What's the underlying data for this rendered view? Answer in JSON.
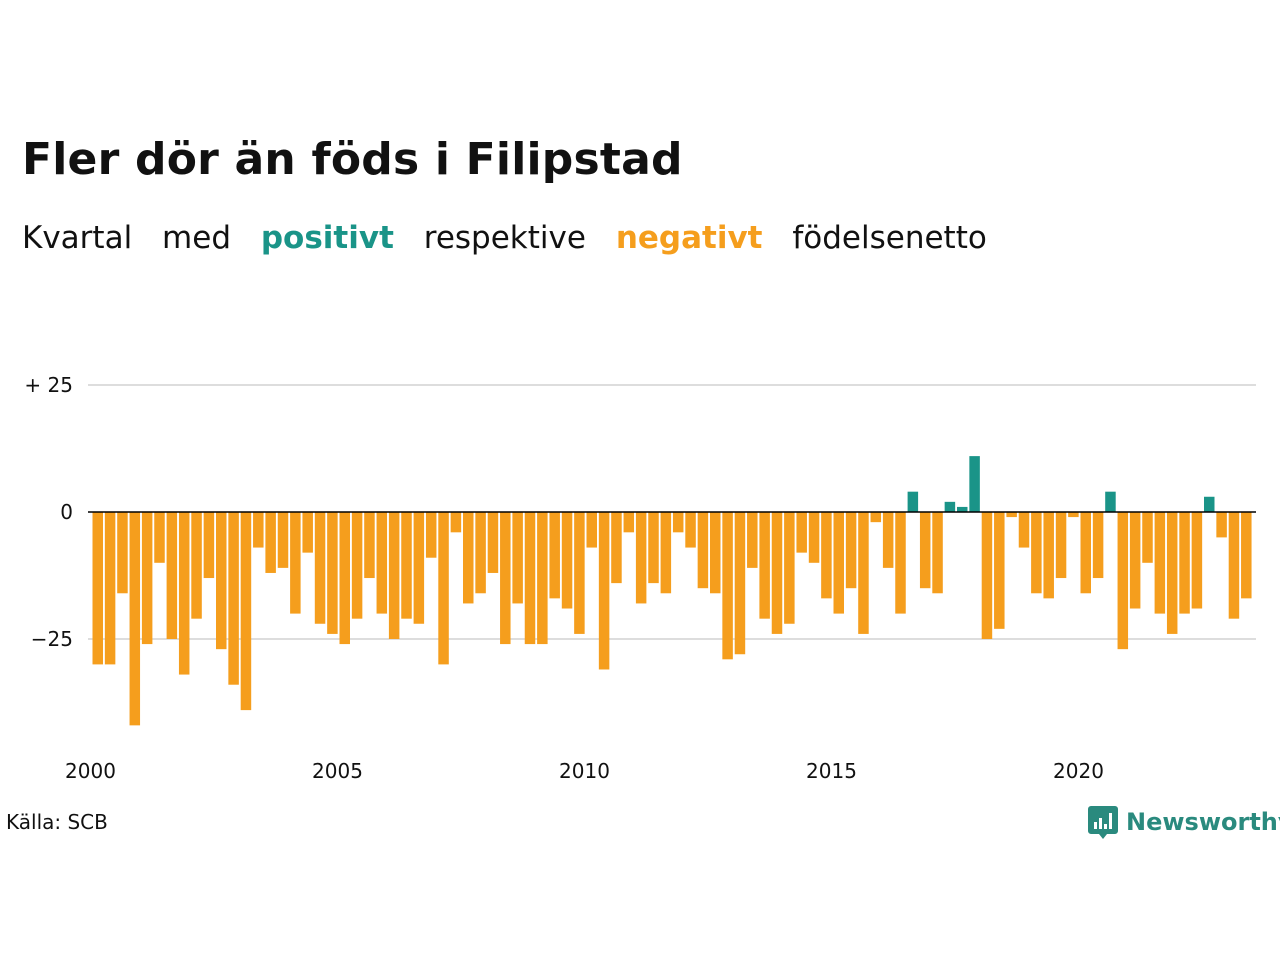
{
  "title": "Fler dör än föds i Filipstad",
  "subtitle": {
    "part1": "Kvartal",
    "part2": "med",
    "positive_word": "positivt",
    "part3": "respektive",
    "negative_word": "negativt",
    "part4": "födelsenetto"
  },
  "source": "Källa: SCB",
  "brand": {
    "name": "Newsworthy",
    "icon": "newsworthy-logo-icon"
  },
  "colors": {
    "positive": "#1a9488",
    "negative": "#f59e1d",
    "brand": "#2a8a7e",
    "grid": "#dddddd",
    "zero_line": "#000000"
  },
  "chart_data": {
    "type": "bar",
    "title": "Fler dör än föds i Filipstad",
    "xlabel": "",
    "ylabel": "",
    "x_start": "2000 Q1",
    "x_ticks": [
      "2000",
      "2005",
      "2010",
      "2015",
      "2020"
    ],
    "y_ticks": [
      {
        "value": 25,
        "label": "+ 25"
      },
      {
        "value": 0,
        "label": "0"
      },
      {
        "value": -25,
        "label": "−25"
      }
    ],
    "ylim": [
      -44,
      25
    ],
    "grid": true,
    "values": [
      -30,
      -30,
      -16,
      -42,
      -26,
      -10,
      -25,
      -32,
      -21,
      -13,
      -27,
      -34,
      -39,
      -7,
      -12,
      -11,
      -20,
      -8,
      -22,
      -24,
      -26,
      -21,
      -13,
      -20,
      -25,
      -21,
      -22,
      -9,
      -30,
      -4,
      -18,
      -16,
      -12,
      -26,
      -18,
      -26,
      -26,
      -17,
      -19,
      -24,
      -7,
      -31,
      -14,
      -4,
      -18,
      -14,
      -16,
      -4,
      -7,
      -15,
      -16,
      -29,
      -28,
      -11,
      -21,
      -24,
      -22,
      -8,
      -10,
      -17,
      -20,
      -15,
      -24,
      -2,
      -11,
      -20,
      4,
      -15,
      -16,
      2,
      1,
      11,
      -25,
      -23,
      -1,
      -7,
      -16,
      -17,
      -13,
      -1,
      -16,
      -13,
      4,
      -27,
      -19,
      -10,
      -20,
      -24,
      -20,
      -19,
      3,
      -5,
      -21,
      -17
    ]
  }
}
